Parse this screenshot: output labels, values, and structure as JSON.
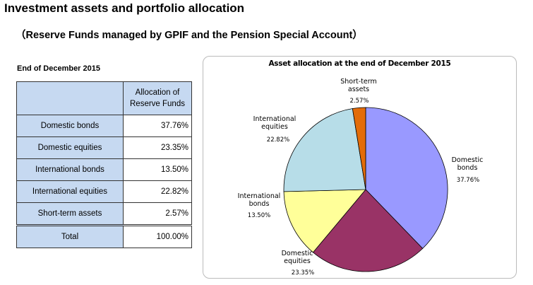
{
  "header": {
    "title": "Investment assets and portfolio allocation",
    "subtitle": "（Reserve Funds managed by GPIF and the Pension Special Account）"
  },
  "table": {
    "as_of": "End of December 2015",
    "column_header": "Allocation of Reserve Funds",
    "rows": [
      {
        "label": "Domestic bonds",
        "value": "37.76%"
      },
      {
        "label": "Domestic equities",
        "value": "23.35%"
      },
      {
        "label": "International bonds",
        "value": "13.50%"
      },
      {
        "label": "International equities",
        "value": "22.82%"
      },
      {
        "label": "Short-term assets",
        "value": "2.57%"
      }
    ],
    "total": {
      "label": "Total",
      "value": "100.00%"
    }
  },
  "chart_data": {
    "type": "pie",
    "title": "Asset allocation at the end of December 2015",
    "start_angle": "12 o'clock, clockwise",
    "slices": [
      {
        "name": "Domestic bonds",
        "lines": [
          "Domestic",
          "bonds"
        ],
        "value": 37.76,
        "label": "37.76%",
        "color": "#9999ff"
      },
      {
        "name": "Domestic equities",
        "lines": [
          "Domestic",
          "equities"
        ],
        "value": 23.35,
        "label": "23.35%",
        "color": "#993366"
      },
      {
        "name": "International bonds",
        "lines": [
          "International",
          "bonds"
        ],
        "value": 13.5,
        "label": "13.50%",
        "color": "#ffff99"
      },
      {
        "name": "International equities",
        "lines": [
          "International",
          "equities"
        ],
        "value": 22.82,
        "label": "22.82%",
        "color": "#b7dde8"
      },
      {
        "name": "Short-term assets",
        "lines": [
          "Short-term",
          "assets"
        ],
        "value": 2.57,
        "label": "2.57%",
        "color": "#e36c09"
      }
    ]
  }
}
